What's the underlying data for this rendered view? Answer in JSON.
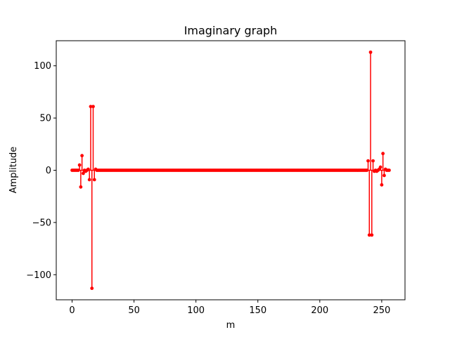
{
  "chart_data": {
    "type": "stem",
    "title": "Imaginary graph",
    "xlabel": "m",
    "ylabel": "Amplitude",
    "xlim": [
      -12.8,
      268.8
    ],
    "ylim": [
      -124.0,
      124.0
    ],
    "x_ticks": [
      0,
      50,
      100,
      150,
      200,
      250
    ],
    "y_ticks": [
      -100,
      -50,
      0,
      50,
      100
    ],
    "x_tick_labels": [
      "0",
      "50",
      "100",
      "150",
      "200",
      "250"
    ],
    "y_tick_labels": [
      "−100",
      "−50",
      "0",
      "50",
      "100"
    ],
    "color": "#ff0000",
    "n_points": 257,
    "baseline": 0,
    "spikes": [
      {
        "x": 6,
        "y": 5
      },
      {
        "x": 7,
        "y": -16
      },
      {
        "x": 8,
        "y": 14
      },
      {
        "x": 9,
        "y": -3
      },
      {
        "x": 11,
        "y": -1
      },
      {
        "x": 13,
        "y": 1
      },
      {
        "x": 14,
        "y": -9
      },
      {
        "x": 15,
        "y": 61
      },
      {
        "x": 16,
        "y": -113
      },
      {
        "x": 17,
        "y": 61
      },
      {
        "x": 18,
        "y": -9
      },
      {
        "x": 19,
        "y": 1
      },
      {
        "x": 239,
        "y": 9
      },
      {
        "x": 240,
        "y": -62
      },
      {
        "x": 241,
        "y": 113
      },
      {
        "x": 242,
        "y": -62
      },
      {
        "x": 243,
        "y": 9
      },
      {
        "x": 244,
        "y": -1
      },
      {
        "x": 246,
        "y": -1
      },
      {
        "x": 248,
        "y": 1
      },
      {
        "x": 249,
        "y": 3
      },
      {
        "x": 250,
        "y": -14
      },
      {
        "x": 251,
        "y": 16
      },
      {
        "x": 252,
        "y": -5
      },
      {
        "x": 253,
        "y": 1
      }
    ]
  }
}
